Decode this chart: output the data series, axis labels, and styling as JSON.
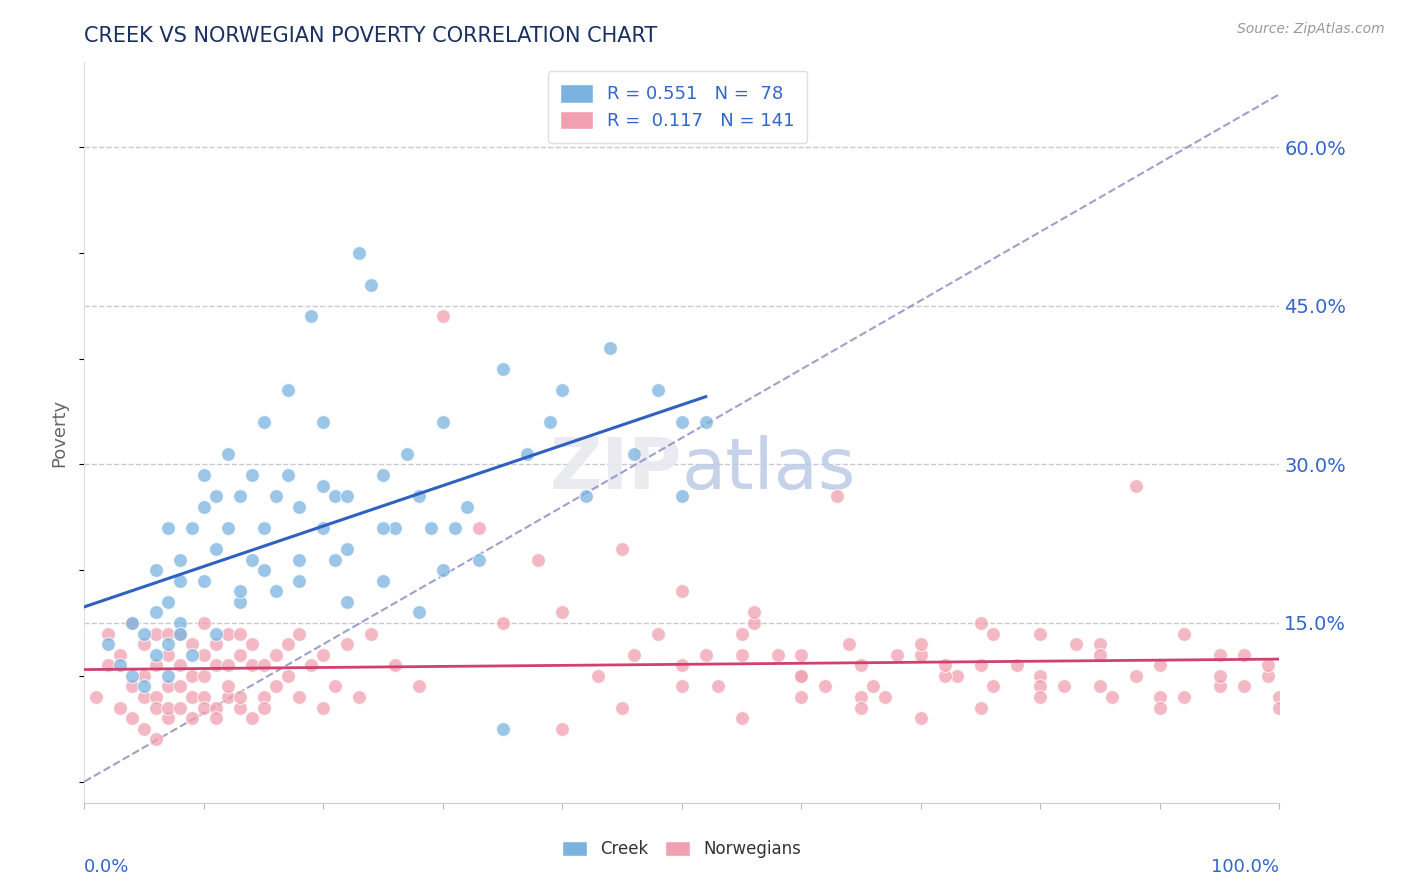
{
  "title": "CREEK VS NORWEGIAN POVERTY CORRELATION CHART",
  "source": "Source: ZipAtlas.com",
  "ylabel": "Poverty",
  "ytick_labels": [
    "15.0%",
    "30.0%",
    "45.0%",
    "60.0%"
  ],
  "ytick_values": [
    0.15,
    0.3,
    0.45,
    0.6
  ],
  "xlim": [
    0.0,
    1.0
  ],
  "ylim": [
    -0.02,
    0.68
  ],
  "creek_R": 0.551,
  "creek_N": 78,
  "norwegian_R": 0.117,
  "norwegian_N": 141,
  "creek_color": "#7ab3e0",
  "norwegian_color": "#f0a0b0",
  "creek_line_color": "#3060c0",
  "norwegian_line_color": "#d04070",
  "ref_line_color": "#8888bb",
  "background_color": "#ffffff",
  "grid_color": "#c8c8d8",
  "title_color": "#1a3060",
  "axis_label_color": "#3366cc",
  "creek_scatter_x": [
    0.02,
    0.03,
    0.04,
    0.04,
    0.05,
    0.05,
    0.06,
    0.06,
    0.06,
    0.07,
    0.07,
    0.07,
    0.07,
    0.08,
    0.08,
    0.08,
    0.08,
    0.09,
    0.09,
    0.1,
    0.1,
    0.1,
    0.11,
    0.11,
    0.11,
    0.12,
    0.12,
    0.13,
    0.13,
    0.14,
    0.14,
    0.15,
    0.15,
    0.16,
    0.16,
    0.17,
    0.17,
    0.18,
    0.18,
    0.19,
    0.2,
    0.2,
    0.21,
    0.21,
    0.22,
    0.22,
    0.23,
    0.24,
    0.25,
    0.25,
    0.26,
    0.27,
    0.28,
    0.29,
    0.3,
    0.31,
    0.32,
    0.33,
    0.35,
    0.37,
    0.39,
    0.4,
    0.42,
    0.44,
    0.46,
    0.48,
    0.5,
    0.5,
    0.52,
    0.2,
    0.18,
    0.22,
    0.3,
    0.15,
    0.13,
    0.25,
    0.35,
    0.28
  ],
  "creek_scatter_y": [
    0.13,
    0.11,
    0.1,
    0.15,
    0.09,
    0.14,
    0.2,
    0.16,
    0.12,
    0.1,
    0.24,
    0.17,
    0.13,
    0.19,
    0.15,
    0.21,
    0.14,
    0.12,
    0.24,
    0.26,
    0.29,
    0.19,
    0.22,
    0.27,
    0.14,
    0.24,
    0.31,
    0.17,
    0.27,
    0.29,
    0.21,
    0.34,
    0.24,
    0.27,
    0.18,
    0.29,
    0.37,
    0.21,
    0.19,
    0.44,
    0.24,
    0.34,
    0.27,
    0.21,
    0.27,
    0.17,
    0.5,
    0.47,
    0.29,
    0.19,
    0.24,
    0.31,
    0.27,
    0.24,
    0.34,
    0.24,
    0.26,
    0.21,
    0.39,
    0.31,
    0.34,
    0.37,
    0.27,
    0.41,
    0.31,
    0.37,
    0.27,
    0.34,
    0.34,
    0.28,
    0.26,
    0.22,
    0.2,
    0.2,
    0.18,
    0.24,
    0.05,
    0.16
  ],
  "norwegian_scatter_x": [
    0.01,
    0.02,
    0.02,
    0.03,
    0.03,
    0.04,
    0.04,
    0.04,
    0.05,
    0.05,
    0.05,
    0.05,
    0.06,
    0.06,
    0.06,
    0.06,
    0.06,
    0.07,
    0.07,
    0.07,
    0.07,
    0.07,
    0.08,
    0.08,
    0.08,
    0.08,
    0.09,
    0.09,
    0.09,
    0.09,
    0.1,
    0.1,
    0.1,
    0.1,
    0.1,
    0.11,
    0.11,
    0.11,
    0.11,
    0.12,
    0.12,
    0.12,
    0.12,
    0.13,
    0.13,
    0.13,
    0.13,
    0.14,
    0.14,
    0.14,
    0.15,
    0.15,
    0.15,
    0.16,
    0.16,
    0.17,
    0.17,
    0.18,
    0.18,
    0.19,
    0.2,
    0.2,
    0.21,
    0.22,
    0.23,
    0.24,
    0.26,
    0.28,
    0.3,
    0.33,
    0.35,
    0.38,
    0.4,
    0.43,
    0.46,
    0.5,
    0.53,
    0.56,
    0.6,
    0.63,
    0.66,
    0.7,
    0.73,
    0.76,
    0.8,
    0.83,
    0.86,
    0.88,
    0.9,
    0.92,
    0.95,
    0.97,
    0.99,
    1.0,
    0.55,
    0.58,
    0.62,
    0.65,
    0.45,
    0.48,
    0.52,
    0.56,
    0.68,
    0.72,
    0.75,
    0.78,
    0.82,
    0.85,
    0.88,
    0.92,
    0.95,
    0.97,
    0.99,
    0.6,
    0.64,
    0.67,
    0.72,
    0.76,
    0.8,
    0.5,
    0.55,
    0.6,
    0.65,
    0.7,
    0.75,
    0.8,
    0.85,
    0.9,
    0.95,
    1.0,
    0.4,
    0.45,
    0.5,
    0.55,
    0.6,
    0.65,
    0.7,
    0.75,
    0.8,
    0.85,
    0.9
  ],
  "norwegian_scatter_y": [
    0.08,
    0.11,
    0.14,
    0.07,
    0.12,
    0.09,
    0.15,
    0.06,
    0.05,
    0.1,
    0.13,
    0.08,
    0.04,
    0.08,
    0.11,
    0.14,
    0.07,
    0.06,
    0.09,
    0.12,
    0.07,
    0.14,
    0.07,
    0.11,
    0.14,
    0.09,
    0.06,
    0.1,
    0.13,
    0.08,
    0.08,
    0.12,
    0.15,
    0.07,
    0.1,
    0.07,
    0.11,
    0.06,
    0.13,
    0.08,
    0.11,
    0.14,
    0.09,
    0.07,
    0.12,
    0.08,
    0.14,
    0.11,
    0.06,
    0.13,
    0.08,
    0.11,
    0.07,
    0.12,
    0.09,
    0.1,
    0.13,
    0.08,
    0.14,
    0.11,
    0.07,
    0.12,
    0.09,
    0.13,
    0.08,
    0.14,
    0.11,
    0.09,
    0.44,
    0.24,
    0.15,
    0.21,
    0.16,
    0.1,
    0.12,
    0.11,
    0.09,
    0.15,
    0.12,
    0.27,
    0.09,
    0.12,
    0.1,
    0.14,
    0.1,
    0.13,
    0.08,
    0.28,
    0.11,
    0.14,
    0.09,
    0.12,
    0.1,
    0.08,
    0.14,
    0.12,
    0.09,
    0.11,
    0.22,
    0.14,
    0.12,
    0.16,
    0.12,
    0.1,
    0.15,
    0.11,
    0.09,
    0.13,
    0.1,
    0.08,
    0.12,
    0.09,
    0.11,
    0.1,
    0.13,
    0.08,
    0.11,
    0.09,
    0.14,
    0.18,
    0.12,
    0.1,
    0.08,
    0.13,
    0.11,
    0.09,
    0.12,
    0.08,
    0.1,
    0.07,
    0.05,
    0.07,
    0.09,
    0.06,
    0.08,
    0.07,
    0.06,
    0.07,
    0.08,
    0.09,
    0.07
  ]
}
